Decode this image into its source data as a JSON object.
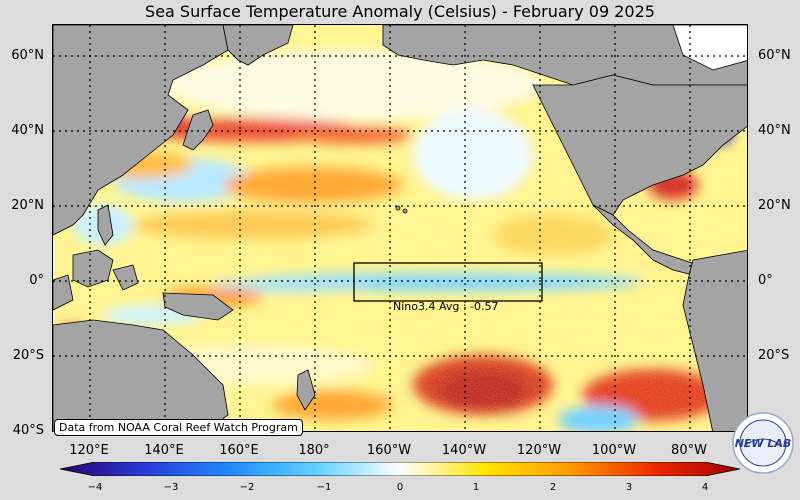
{
  "title": "Sea Surface Temperature Anomaly (Celsius) - February 09 2025",
  "credit": "Data from NOAA Coral Reef Watch Program",
  "nino_label": "Nino3.4 Avg : -0.57",
  "logo_text": "NEW LAB",
  "lat_labels": [
    "60°N",
    "40°N",
    "20°N",
    "0°",
    "20°S",
    "40°S"
  ],
  "lon_labels": [
    "120°E",
    "140°E",
    "160°E",
    "180°",
    "160°W",
    "140°W",
    "120°W",
    "100°W",
    "80°W"
  ],
  "colorbar": {
    "ticks": [
      "−4",
      "−3",
      "−2",
      "−1",
      "0",
      "1",
      "2",
      "3",
      "4"
    ],
    "colors": [
      "#2a006e",
      "#2a3bd8",
      "#1f8cff",
      "#5fd0ff",
      "#ffffff",
      "#ffe400",
      "#ff9a00",
      "#ee2a00",
      "#a00000"
    ]
  },
  "colors": {
    "land": "#a4a4a4",
    "background": "#dcdcdc"
  }
}
